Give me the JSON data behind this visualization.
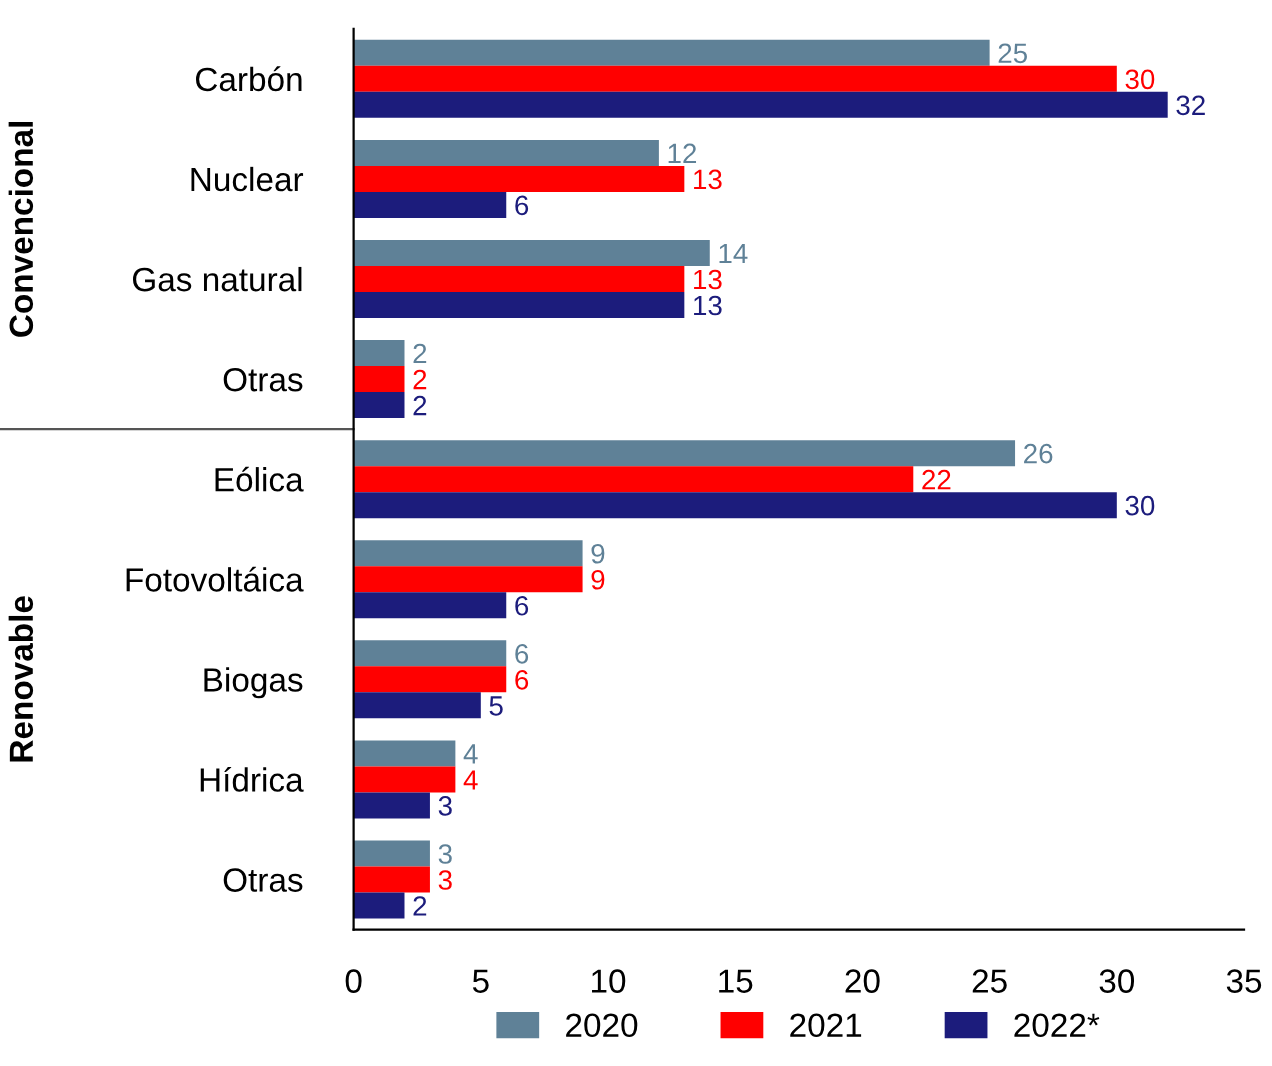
{
  "chart_data": {
    "type": "bar",
    "orientation": "horizontal",
    "categories": [
      "Carbón",
      "Nuclear",
      "Gas natural",
      "Otras",
      "Eólica",
      "Fotovoltáica",
      "Biogas",
      "Hídrica",
      "Otras"
    ],
    "series": [
      {
        "name": "2020",
        "color": "#5f8197",
        "values": [
          25,
          12,
          14,
          2,
          26,
          9,
          6,
          4,
          3
        ]
      },
      {
        "name": "2021",
        "color": "#ff0000",
        "values": [
          30,
          13,
          13,
          2,
          22,
          9,
          6,
          4,
          3
        ]
      },
      {
        "name": "2022*",
        "color": "#1c1c7c",
        "values": [
          32,
          6,
          13,
          2,
          30,
          6,
          5,
          3,
          2
        ]
      }
    ],
    "xlim": [
      0,
      35
    ],
    "xticks": [
      0,
      5,
      10,
      15,
      20,
      25,
      30,
      35
    ],
    "data_labels": true,
    "grid": false,
    "legend": "bottom",
    "annotations": [
      "Convencional",
      "Renovable"
    ]
  }
}
